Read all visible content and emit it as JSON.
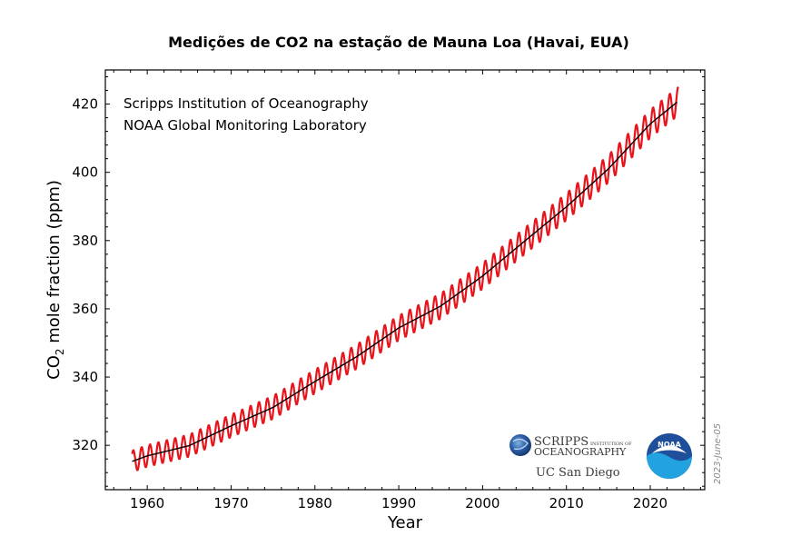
{
  "chart_data": {
    "type": "line",
    "title": "Medições de CO2 na estação de Mauna Loa (Havai, EUA)",
    "xlabel": "Year",
    "ylabel_main": "CO",
    "ylabel_sub": "2",
    "ylabel_rest": " mole fraction (ppm)",
    "xlim": [
      1955,
      2026.5
    ],
    "ylim": [
      307,
      430
    ],
    "xticks": [
      1960,
      1970,
      1980,
      1990,
      2000,
      2010,
      2020
    ],
    "yticks": [
      320,
      340,
      360,
      380,
      400,
      420
    ],
    "grid": false,
    "credits": [
      "Scripps Institution of Oceanography",
      "NOAA Global Monitoring Laboratory"
    ],
    "date_stamp": "2023-June-05",
    "series": [
      {
        "kind": "monthly",
        "color": "#e8141c",
        "start_year": 1958.2,
        "end_year": 2023.42,
        "seasonal_amplitude_ppm": 3.2,
        "trend_points": [
          [
            1958.2,
            315.3
          ],
          [
            1960,
            316.9
          ],
          [
            1965,
            319.9
          ],
          [
            1970,
            325.7
          ],
          [
            1975,
            331.1
          ],
          [
            1980,
            338.7
          ],
          [
            1985,
            346.0
          ],
          [
            1990,
            354.4
          ],
          [
            1995,
            360.8
          ],
          [
            2000,
            369.6
          ],
          [
            2005,
            379.8
          ],
          [
            2010,
            389.9
          ],
          [
            2015,
            401.0
          ],
          [
            2020,
            414.2
          ],
          [
            2023.42,
            421.0
          ]
        ]
      },
      {
        "kind": "trend",
        "color": "#000000",
        "points": [
          [
            1958.2,
            315.3
          ],
          [
            1960,
            316.9
          ],
          [
            1965,
            319.9
          ],
          [
            1970,
            325.7
          ],
          [
            1975,
            331.1
          ],
          [
            1980,
            338.7
          ],
          [
            1985,
            346.0
          ],
          [
            1990,
            354.4
          ],
          [
            1995,
            360.8
          ],
          [
            2000,
            369.6
          ],
          [
            2005,
            379.8
          ],
          [
            2010,
            389.9
          ],
          [
            2015,
            401.0
          ],
          [
            2020,
            414.2
          ],
          [
            2023.42,
            421.0
          ]
        ]
      }
    ]
  },
  "logos": {
    "scripps_line1": "SCRIPPS",
    "scripps_small": "INSTITUTION OF",
    "scripps_line2": "OCEANOGRAPHY",
    "ucsd": "UC San Diego",
    "noaa": "NOAA"
  }
}
